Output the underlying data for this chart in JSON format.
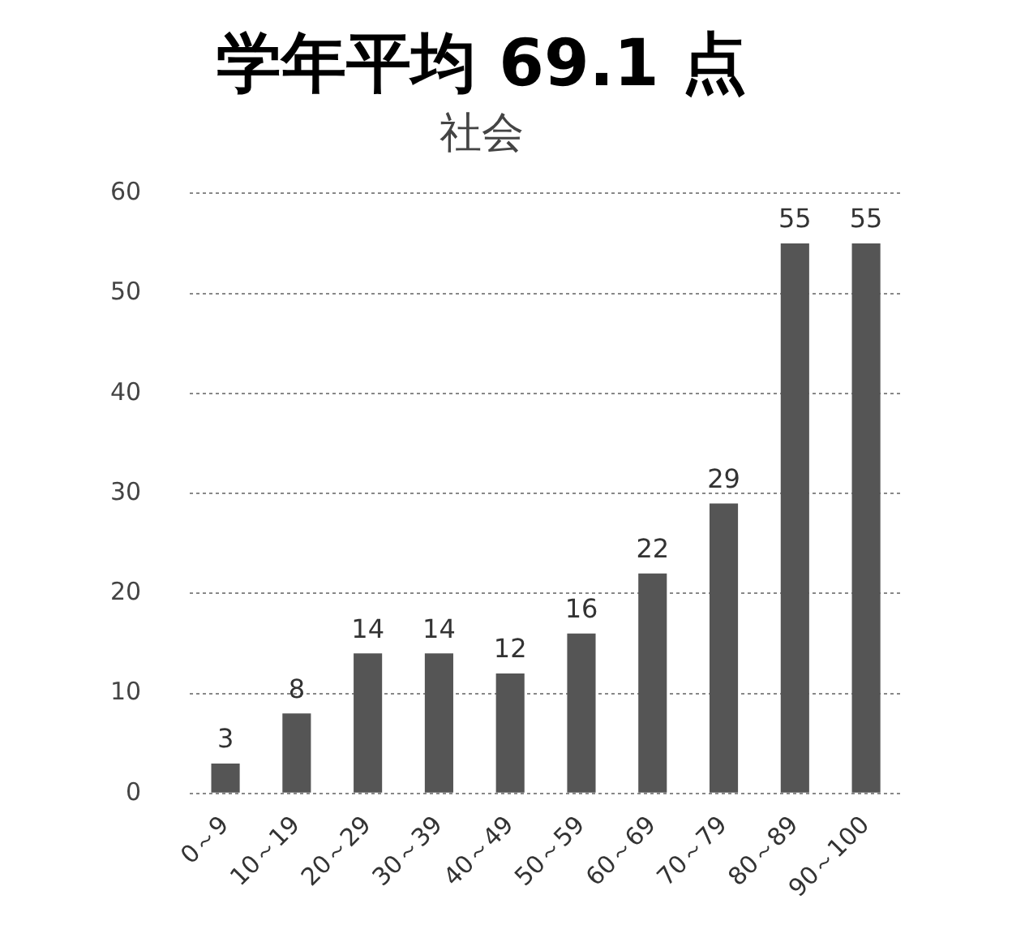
{
  "chart_data": {
    "type": "bar",
    "title": "学年平均 69.1 点",
    "subtitle": "社会",
    "categories": [
      "0～9",
      "10～19",
      "20～29",
      "30～39",
      "40～49",
      "50～59",
      "60～69",
      "70～79",
      "80～89",
      "90～100"
    ],
    "values": [
      3,
      8,
      14,
      14,
      12,
      16,
      22,
      29,
      55,
      55
    ],
    "color": "#555555",
    "ylim": [
      0,
      60
    ],
    "yticks": [
      0,
      10,
      20,
      30,
      40,
      50,
      60
    ],
    "grid": "y",
    "data_labels": true
  }
}
